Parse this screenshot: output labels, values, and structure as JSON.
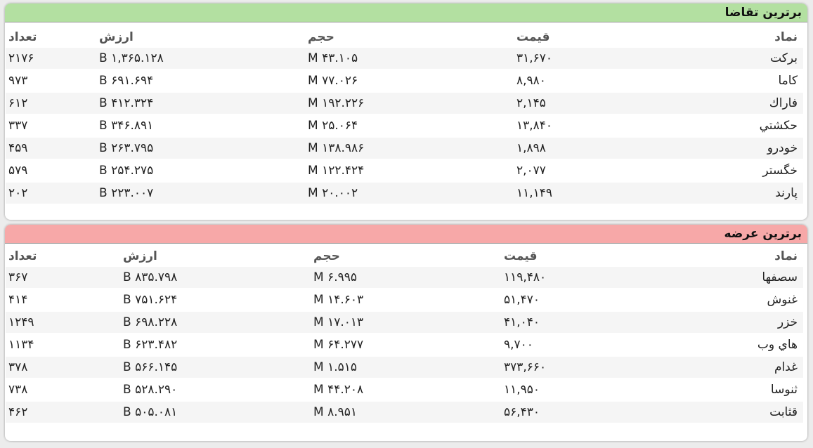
{
  "demand": {
    "title": "برترین تقاضا",
    "headers": {
      "symbol": "نماد",
      "price": "قیمت",
      "volume": "حجم",
      "value": "ارزش",
      "count": "تعداد"
    },
    "rows": [
      {
        "symbol": "برکت",
        "price": "۳۱,۶۷۰",
        "volume": "۴۳.۱۰۵ M",
        "value": "۱,۳۶۵.۱۲۸ B",
        "count": "۲۱۷۶"
      },
      {
        "symbol": "کاما",
        "price": "۸,۹۸۰",
        "volume": "۷۷.۰۲۶ M",
        "value": "۶۹۱.۶۹۴ B",
        "count": "۹۷۳"
      },
      {
        "symbol": "فاراك",
        "price": "۲,۱۴۵",
        "volume": "۱۹۲.۲۲۶ M",
        "value": "۴۱۲.۳۲۴ B",
        "count": "۶۱۲"
      },
      {
        "symbol": "حكشتي",
        "price": "۱۳,۸۴۰",
        "volume": "۲۵.۰۶۴ M",
        "value": "۳۴۶.۸۹۱ B",
        "count": "۳۳۷"
      },
      {
        "symbol": "خودرو",
        "price": "۱,۸۹۸",
        "volume": "۱۳۸.۹۸۶ M",
        "value": "۲۶۳.۷۹۵ B",
        "count": "۴۵۹"
      },
      {
        "symbol": "خگستر",
        "price": "۲,۰۷۷",
        "volume": "۱۲۲.۴۲۴ M",
        "value": "۲۵۴.۲۷۵ B",
        "count": "۵۷۹"
      },
      {
        "symbol": "پارند",
        "price": "۱۱,۱۴۹",
        "volume": "۲۰.۰۰۲ M",
        "value": "۲۲۳.۰۰۷ B",
        "count": "۲۰۲"
      }
    ]
  },
  "supply": {
    "title": "برترین عرضه",
    "headers": {
      "symbol": "نماد",
      "price": "قیمت",
      "volume": "حجم",
      "value": "ارزش",
      "count": "تعداد"
    },
    "rows": [
      {
        "symbol": "سصفها",
        "price": "۱۱۹,۴۸۰",
        "volume": "۶.۹۹۵ M",
        "value": "۸۳۵.۷۹۸ B",
        "count": "۳۶۷"
      },
      {
        "symbol": "غنوش",
        "price": "۵۱,۴۷۰",
        "volume": "۱۴.۶۰۳ M",
        "value": "۷۵۱.۶۲۴ B",
        "count": "۴۱۴"
      },
      {
        "symbol": "خزر",
        "price": "۴۱,۰۴۰",
        "volume": "۱۷.۰۱۳ M",
        "value": "۶۹۸.۲۲۸ B",
        "count": "۱۲۴۹"
      },
      {
        "symbol": "هاي وب",
        "price": "۹,۷۰۰",
        "volume": "۶۴.۲۷۷ M",
        "value": "۶۲۳.۴۸۲ B",
        "count": "۱۱۳۴"
      },
      {
        "symbol": "غدام",
        "price": "۳۷۳,۶۶۰",
        "volume": "۱.۵۱۵ M",
        "value": "۵۶۶.۱۴۵ B",
        "count": "۳۷۸"
      },
      {
        "symbol": "ثنوسا",
        "price": "۱۱,۹۵۰",
        "volume": "۴۴.۲۰۸ M",
        "value": "۵۲۸.۲۹۰ B",
        "count": "۷۳۸"
      },
      {
        "symbol": "قثابت",
        "price": "۵۶,۴۳۰",
        "volume": "۸.۹۵۱ M",
        "value": "۵۰۵.۰۸۱ B",
        "count": "۴۶۲"
      }
    ]
  },
  "colors": {
    "demand_header": "#b3e0a1",
    "supply_header": "#f7a8a8"
  }
}
